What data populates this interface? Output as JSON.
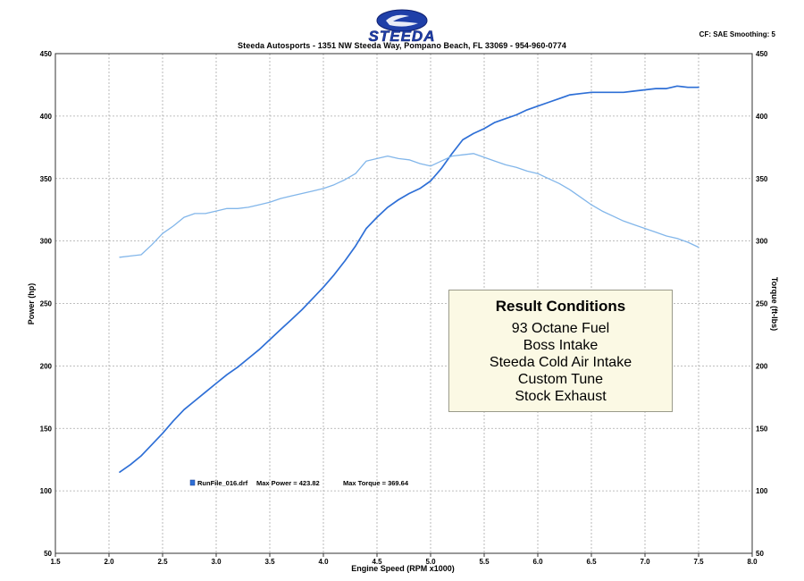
{
  "header": {
    "brand": "STEEDA",
    "address": "Steeda Autosports - 1351 NW Steeda Way, Pompano Beach, FL 33069 - 954-960-0774",
    "cf_label": "CF: SAE  Smoothing: 5"
  },
  "result_box": {
    "title": "Result Conditions",
    "lines": [
      "93 Octane Fuel",
      "Boss Intake",
      "Steeda Cold Air Intake",
      "Custom Tune",
      "Stock Exhaust"
    ]
  },
  "legend": {
    "file": "RunFile_016.drf",
    "max_power_label": "Max Power = 423.82",
    "max_torque_label": "Max Torque = 369.64"
  },
  "colors": {
    "power": "#2e6fd6",
    "torque": "#82b6ea",
    "grid": "#a9a9a9"
  },
  "chart_data": {
    "type": "line",
    "xlabel": "Engine Speed (RPM x1000)",
    "ylabel": "Power (hp)",
    "y2label": "Torque (ft-lbs)",
    "xlim": [
      1.5,
      8.0
    ],
    "ylim": [
      50,
      450
    ],
    "y2lim": [
      50,
      450
    ],
    "x_ticks": [
      "1.5",
      "2.0",
      "2.5",
      "3.0",
      "3.5",
      "4.0",
      "4.5",
      "5.0",
      "5.5",
      "6.0",
      "6.5",
      "7.0",
      "7.5",
      "8.0"
    ],
    "y_ticks": [
      "50",
      "100",
      "150",
      "200",
      "250",
      "300",
      "350",
      "400",
      "450"
    ],
    "grid": true,
    "series": [
      {
        "key": "power",
        "x": [
          2.1,
          2.2,
          2.3,
          2.4,
          2.5,
          2.6,
          2.7,
          2.8,
          2.9,
          3.0,
          3.1,
          3.2,
          3.3,
          3.4,
          3.5,
          3.6,
          3.7,
          3.8,
          3.9,
          4.0,
          4.1,
          4.2,
          4.3,
          4.4,
          4.5,
          4.6,
          4.7,
          4.8,
          4.9,
          5.0,
          5.1,
          5.2,
          5.3,
          5.4,
          5.5,
          5.6,
          5.7,
          5.8,
          5.9,
          6.0,
          6.1,
          6.2,
          6.3,
          6.4,
          6.5,
          6.6,
          6.7,
          6.8,
          6.9,
          7.0,
          7.1,
          7.2,
          7.3,
          7.4,
          7.5
        ],
        "values": [
          115,
          121,
          128,
          137,
          146,
          156,
          165,
          172,
          179,
          186,
          193,
          199,
          206,
          213,
          221,
          229,
          237,
          245,
          254,
          263,
          273,
          284,
          296,
          310,
          319,
          327,
          333,
          338,
          342,
          348,
          358,
          370,
          381,
          386,
          390,
          395,
          398,
          401,
          405,
          408,
          411,
          414,
          417,
          418,
          419,
          419,
          419,
          419,
          420,
          421,
          422,
          422,
          424,
          423,
          423
        ]
      },
      {
        "key": "torque",
        "x": [
          2.1,
          2.2,
          2.3,
          2.4,
          2.5,
          2.6,
          2.7,
          2.8,
          2.9,
          3.0,
          3.1,
          3.2,
          3.3,
          3.4,
          3.5,
          3.6,
          3.7,
          3.8,
          3.9,
          4.0,
          4.1,
          4.2,
          4.3,
          4.4,
          4.5,
          4.6,
          4.7,
          4.8,
          4.9,
          5.0,
          5.1,
          5.2,
          5.3,
          5.4,
          5.5,
          5.6,
          5.7,
          5.8,
          5.9,
          6.0,
          6.1,
          6.2,
          6.3,
          6.4,
          6.5,
          6.6,
          6.7,
          6.8,
          6.9,
          7.0,
          7.1,
          7.2,
          7.3,
          7.4,
          7.5
        ],
        "values": [
          287,
          288,
          289,
          297,
          306,
          312,
          319,
          322,
          322,
          324,
          326,
          326,
          327,
          329,
          331,
          334,
          336,
          338,
          340,
          342,
          345,
          349,
          354,
          364,
          366,
          368,
          366,
          365,
          362,
          360,
          364,
          368,
          369,
          370,
          367,
          364,
          361,
          359,
          356,
          354,
          350,
          346,
          341,
          335,
          329,
          324,
          320,
          316,
          313,
          310,
          307,
          304,
          302,
          299,
          295
        ]
      }
    ]
  }
}
